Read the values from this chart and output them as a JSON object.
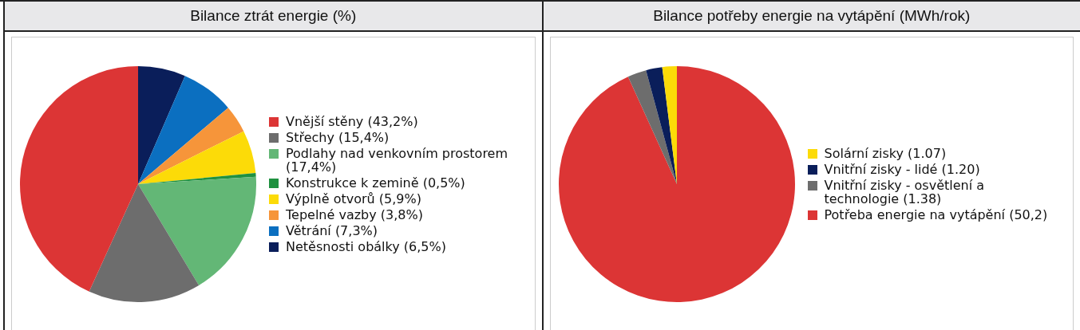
{
  "chart_data": [
    {
      "type": "pie",
      "title": "Bilance ztrát energie (%)",
      "legend": "right",
      "categories": [
        "Vnější stěny (43,2%)",
        "Střechy (15,4%)",
        "Podlahy nad venkovním prostorem (17,4%)",
        "Konstrukce k zemině (0,5%)",
        "Výplně otvorů (5,9%)",
        "Tepelné vazby (3,8%)",
        "Větrání (7,3%)",
        "Netěsnosti obálky (6,5%)"
      ],
      "values": [
        43.2,
        15.4,
        17.4,
        0.5,
        5.9,
        3.8,
        7.3,
        6.5
      ],
      "colors": [
        "#dc3535",
        "#6d6d6d",
        "#63b776",
        "#1f9140",
        "#fcdb08",
        "#f6953a",
        "#0b6fc0",
        "#0a1e5a"
      ]
    },
    {
      "type": "pie",
      "title": "Bilance potřeby energie na vytápění (MWh/rok)",
      "legend": "right",
      "categories": [
        "Solární zisky (1.07)",
        "Vnitřní zisky - lidé (1.20)",
        "Vnitřní zisky - osvětlení a technologie (1.38)",
        "Potřeba energie na vytápění (50,2)"
      ],
      "values": [
        1.07,
        1.2,
        1.38,
        50.2
      ],
      "colors": [
        "#fcdb08",
        "#0a1e5a",
        "#6d6d6d",
        "#dc3535"
      ]
    }
  ]
}
